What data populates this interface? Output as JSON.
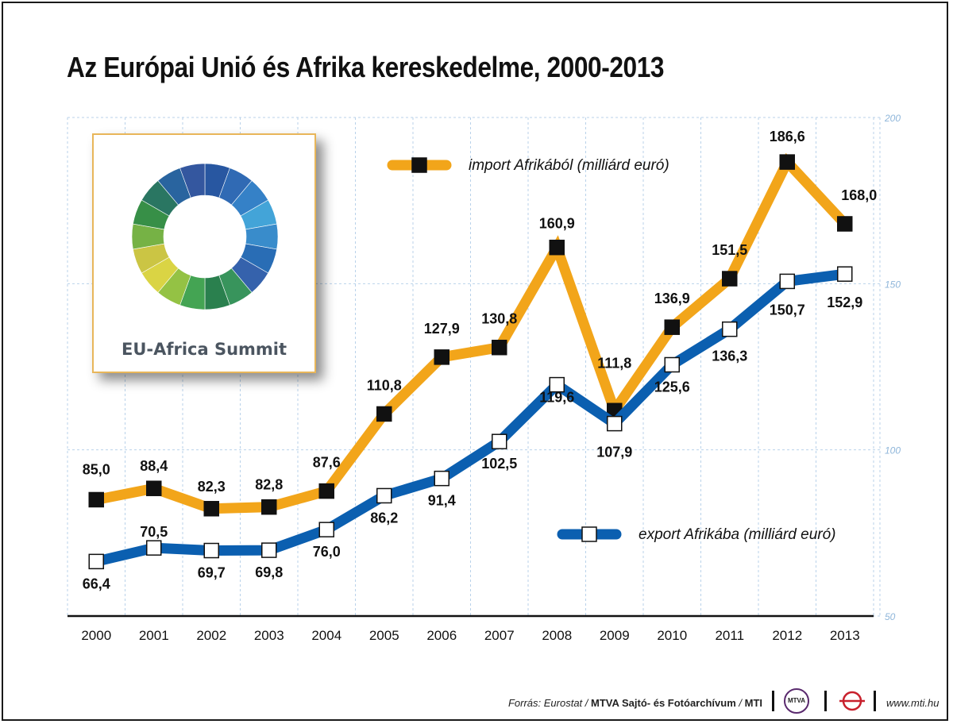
{
  "title": "Az Európai Unió és Afrika  kereskedelme, 2000-2013",
  "chart_data": {
    "type": "line",
    "categories": [
      "2000",
      "2001",
      "2002",
      "2003",
      "2004",
      "2005",
      "2006",
      "2007",
      "2008",
      "2009",
      "2010",
      "2011",
      "2012",
      "2013"
    ],
    "ylim": [
      50,
      200
    ],
    "yticks": [
      "50",
      "100",
      "150",
      "200"
    ],
    "grid": true,
    "legend": "in-plot",
    "series": [
      {
        "name": "import Afrikából (milliárd euró)",
        "color": "#f2a51a",
        "marker": "filled-black-square",
        "values": [
          85.0,
          88.4,
          82.3,
          82.8,
          87.6,
          110.8,
          127.9,
          130.8,
          160.9,
          111.8,
          136.9,
          151.5,
          186.6,
          168.0
        ],
        "labels": [
          "85,0",
          "88,4",
          "82,3",
          "82,8",
          "87,6",
          "110,8",
          "127,9",
          "130,8",
          "160,9",
          "111,8",
          "136,9",
          "151,5",
          "186,6",
          "168,0"
        ]
      },
      {
        "name": "export Afrikába (milliárd euró)",
        "color": "#0b5fb0",
        "marker": "hollow-white-square",
        "values": [
          66.4,
          70.5,
          69.7,
          69.8,
          76.0,
          86.2,
          91.4,
          102.5,
          119.6,
          107.9,
          125.6,
          136.3,
          150.7,
          152.9
        ],
        "labels": [
          "66,4",
          "70,5",
          "69,7",
          "69,8",
          "76,0",
          "86,2",
          "91,4",
          "102,5",
          "119,6",
          "107,9",
          "125,6",
          "136,3",
          "150,7",
          "152,9"
        ]
      }
    ]
  },
  "logo": {
    "text": "EU-Africa Summit"
  },
  "footer": {
    "source_prefix": "Forrás: Eurostat / ",
    "source_bold": "MTVA Sajtó- és Fotóarchívum",
    "source_sep": " / ",
    "source_mti": "MTI",
    "badge": "MTVA",
    "site": "www.mti.hu"
  }
}
